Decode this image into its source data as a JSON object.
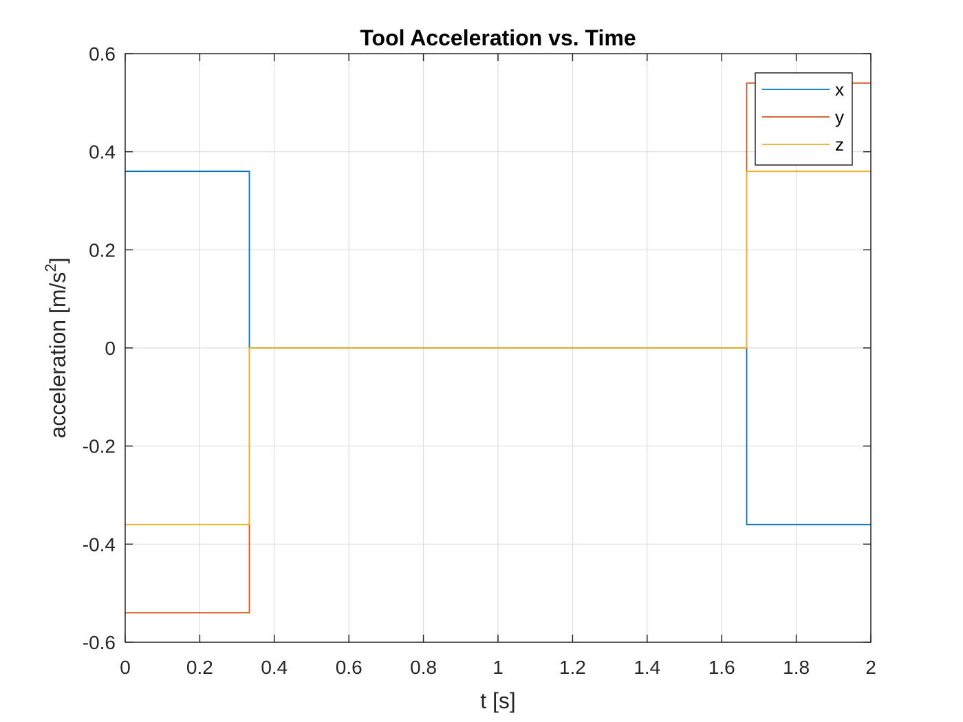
{
  "chart_data": {
    "type": "line",
    "step": true,
    "title": "Tool Acceleration vs. Time",
    "xlabel": "t [s]",
    "ylabel": "acceleration [m/s",
    "ylabel_superscript": "2",
    "ylabel_suffix": "]",
    "xlim": [
      0,
      2
    ],
    "ylim": [
      -0.6,
      0.6
    ],
    "xticks": [
      0,
      0.2,
      0.4,
      0.6,
      0.8,
      1,
      1.2,
      1.4,
      1.6,
      1.8,
      2
    ],
    "xtick_labels": [
      "0",
      "0.2",
      "0.4",
      "0.6",
      "0.8",
      "1",
      "1.2",
      "1.4",
      "1.6",
      "1.8",
      "2"
    ],
    "yticks": [
      -0.6,
      -0.4,
      -0.2,
      0,
      0.2,
      0.4,
      0.6
    ],
    "ytick_labels": [
      "-0.6",
      "-0.4",
      "-0.2",
      "0",
      "0.2",
      "0.4",
      "0.6"
    ],
    "grid": true,
    "legend_position": "top-right",
    "series": [
      {
        "name": "x",
        "color": "#0072BD",
        "points": [
          [
            0,
            0.36
          ],
          [
            0.333,
            0.36
          ],
          [
            0.333,
            0
          ],
          [
            1.667,
            0
          ],
          [
            1.667,
            -0.36
          ],
          [
            2,
            -0.36
          ]
        ]
      },
      {
        "name": "y",
        "color": "#D95319",
        "points": [
          [
            0,
            -0.54
          ],
          [
            0.333,
            -0.54
          ],
          [
            0.333,
            0
          ],
          [
            1.667,
            0
          ],
          [
            1.667,
            0.54
          ],
          [
            2,
            0.54
          ]
        ]
      },
      {
        "name": "z",
        "color": "#EDB120",
        "points": [
          [
            0,
            -0.36
          ],
          [
            0.333,
            -0.36
          ],
          [
            0.333,
            0
          ],
          [
            1.667,
            0
          ],
          [
            1.667,
            0.36
          ],
          [
            2,
            0.36
          ]
        ]
      }
    ]
  }
}
